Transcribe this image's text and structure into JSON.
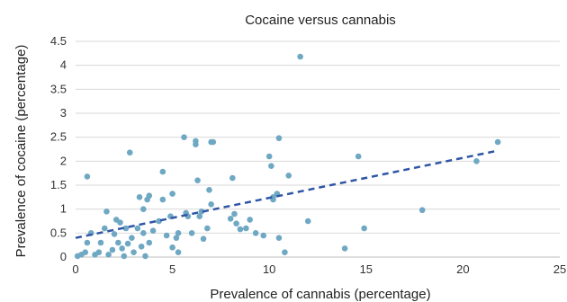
{
  "chart_data": {
    "type": "scatter",
    "title": "Cocaine versus cannabis",
    "xlabel": "Prevalence of cannabis (percentage)",
    "ylabel": "Prevalence of cocaine (percentage)",
    "xlim": [
      0,
      25
    ],
    "ylim": [
      0,
      4.5
    ],
    "x_ticks": [
      "0",
      "5",
      "10",
      "15",
      "20",
      "25"
    ],
    "y_ticks": [
      "0",
      "0.5",
      "1",
      "1.5",
      "2",
      "2.5",
      "3",
      "3.5",
      "4",
      "4.5"
    ],
    "grid": "horizontal",
    "legend": "none",
    "colors": {
      "points": "#6fa8c3",
      "trendline": "#2f56a5",
      "grid": "#d9d9d9",
      "axis": "#bfbfbf"
    },
    "trendline": {
      "style": "dashed",
      "x": [
        0,
        21.8
      ],
      "y": [
        0.4,
        2.22
      ]
    },
    "points": [
      {
        "x": 0.1,
        "y": 0.02
      },
      {
        "x": 0.3,
        "y": 0.05
      },
      {
        "x": 0.5,
        "y": 0.1
      },
      {
        "x": 0.6,
        "y": 1.68
      },
      {
        "x": 0.6,
        "y": 0.3
      },
      {
        "x": 0.8,
        "y": 0.5
      },
      {
        "x": 1.0,
        "y": 0.05
      },
      {
        "x": 1.2,
        "y": 0.1
      },
      {
        "x": 1.3,
        "y": 0.3
      },
      {
        "x": 1.5,
        "y": 0.6
      },
      {
        "x": 1.6,
        "y": 0.95
      },
      {
        "x": 1.7,
        "y": 0.05
      },
      {
        "x": 1.9,
        "y": 0.15
      },
      {
        "x": 2.0,
        "y": 0.48
      },
      {
        "x": 2.1,
        "y": 0.78
      },
      {
        "x": 2.2,
        "y": 0.3
      },
      {
        "x": 2.3,
        "y": 0.72
      },
      {
        "x": 2.4,
        "y": 0.18
      },
      {
        "x": 2.5,
        "y": 0.02
      },
      {
        "x": 2.6,
        "y": 0.6
      },
      {
        "x": 2.7,
        "y": 0.28
      },
      {
        "x": 2.8,
        "y": 2.18
      },
      {
        "x": 2.9,
        "y": 0.4
      },
      {
        "x": 3.0,
        "y": 0.1
      },
      {
        "x": 3.2,
        "y": 0.6
      },
      {
        "x": 3.3,
        "y": 1.25
      },
      {
        "x": 3.4,
        "y": 0.22
      },
      {
        "x": 3.5,
        "y": 0.5
      },
      {
        "x": 3.5,
        "y": 1.0
      },
      {
        "x": 3.6,
        "y": 0.02
      },
      {
        "x": 3.7,
        "y": 1.2
      },
      {
        "x": 3.8,
        "y": 0.3
      },
      {
        "x": 3.8,
        "y": 1.28
      },
      {
        "x": 4.0,
        "y": 0.55
      },
      {
        "x": 4.3,
        "y": 0.75
      },
      {
        "x": 4.5,
        "y": 1.78
      },
      {
        "x": 4.5,
        "y": 1.2
      },
      {
        "x": 4.7,
        "y": 0.45
      },
      {
        "x": 4.9,
        "y": 0.85
      },
      {
        "x": 5.0,
        "y": 0.2
      },
      {
        "x": 5.0,
        "y": 1.32
      },
      {
        "x": 5.2,
        "y": 0.4
      },
      {
        "x": 5.3,
        "y": 0.1
      },
      {
        "x": 5.3,
        "y": 0.5
      },
      {
        "x": 5.6,
        "y": 2.5
      },
      {
        "x": 5.7,
        "y": 0.92
      },
      {
        "x": 5.8,
        "y": 0.85
      },
      {
        "x": 6.0,
        "y": 0.5
      },
      {
        "x": 6.2,
        "y": 2.42
      },
      {
        "x": 6.2,
        "y": 2.35
      },
      {
        "x": 6.3,
        "y": 1.6
      },
      {
        "x": 6.4,
        "y": 0.85
      },
      {
        "x": 6.5,
        "y": 0.95
      },
      {
        "x": 6.6,
        "y": 0.38
      },
      {
        "x": 6.8,
        "y": 0.6
      },
      {
        "x": 6.9,
        "y": 1.4
      },
      {
        "x": 7.0,
        "y": 2.4
      },
      {
        "x": 7.1,
        "y": 2.4
      },
      {
        "x": 7.0,
        "y": 1.1
      },
      {
        "x": 8.0,
        "y": 0.8
      },
      {
        "x": 8.1,
        "y": 1.65
      },
      {
        "x": 8.2,
        "y": 0.9
      },
      {
        "x": 8.3,
        "y": 0.7
      },
      {
        "x": 8.5,
        "y": 0.58
      },
      {
        "x": 8.8,
        "y": 0.6
      },
      {
        "x": 9.0,
        "y": 0.78
      },
      {
        "x": 9.3,
        "y": 0.5
      },
      {
        "x": 9.7,
        "y": 0.45
      },
      {
        "x": 10.0,
        "y": 2.1
      },
      {
        "x": 10.1,
        "y": 1.9
      },
      {
        "x": 10.2,
        "y": 1.2
      },
      {
        "x": 10.2,
        "y": 1.25
      },
      {
        "x": 10.4,
        "y": 1.32
      },
      {
        "x": 10.5,
        "y": 2.48
      },
      {
        "x": 10.5,
        "y": 0.4
      },
      {
        "x": 10.8,
        "y": 0.1
      },
      {
        "x": 11.0,
        "y": 1.7
      },
      {
        "x": 11.6,
        "y": 4.18
      },
      {
        "x": 12.0,
        "y": 0.75
      },
      {
        "x": 13.9,
        "y": 0.18
      },
      {
        "x": 14.6,
        "y": 2.1
      },
      {
        "x": 14.9,
        "y": 0.6
      },
      {
        "x": 17.9,
        "y": 0.98
      },
      {
        "x": 20.7,
        "y": 2.0
      },
      {
        "x": 21.8,
        "y": 2.4
      }
    ]
  }
}
